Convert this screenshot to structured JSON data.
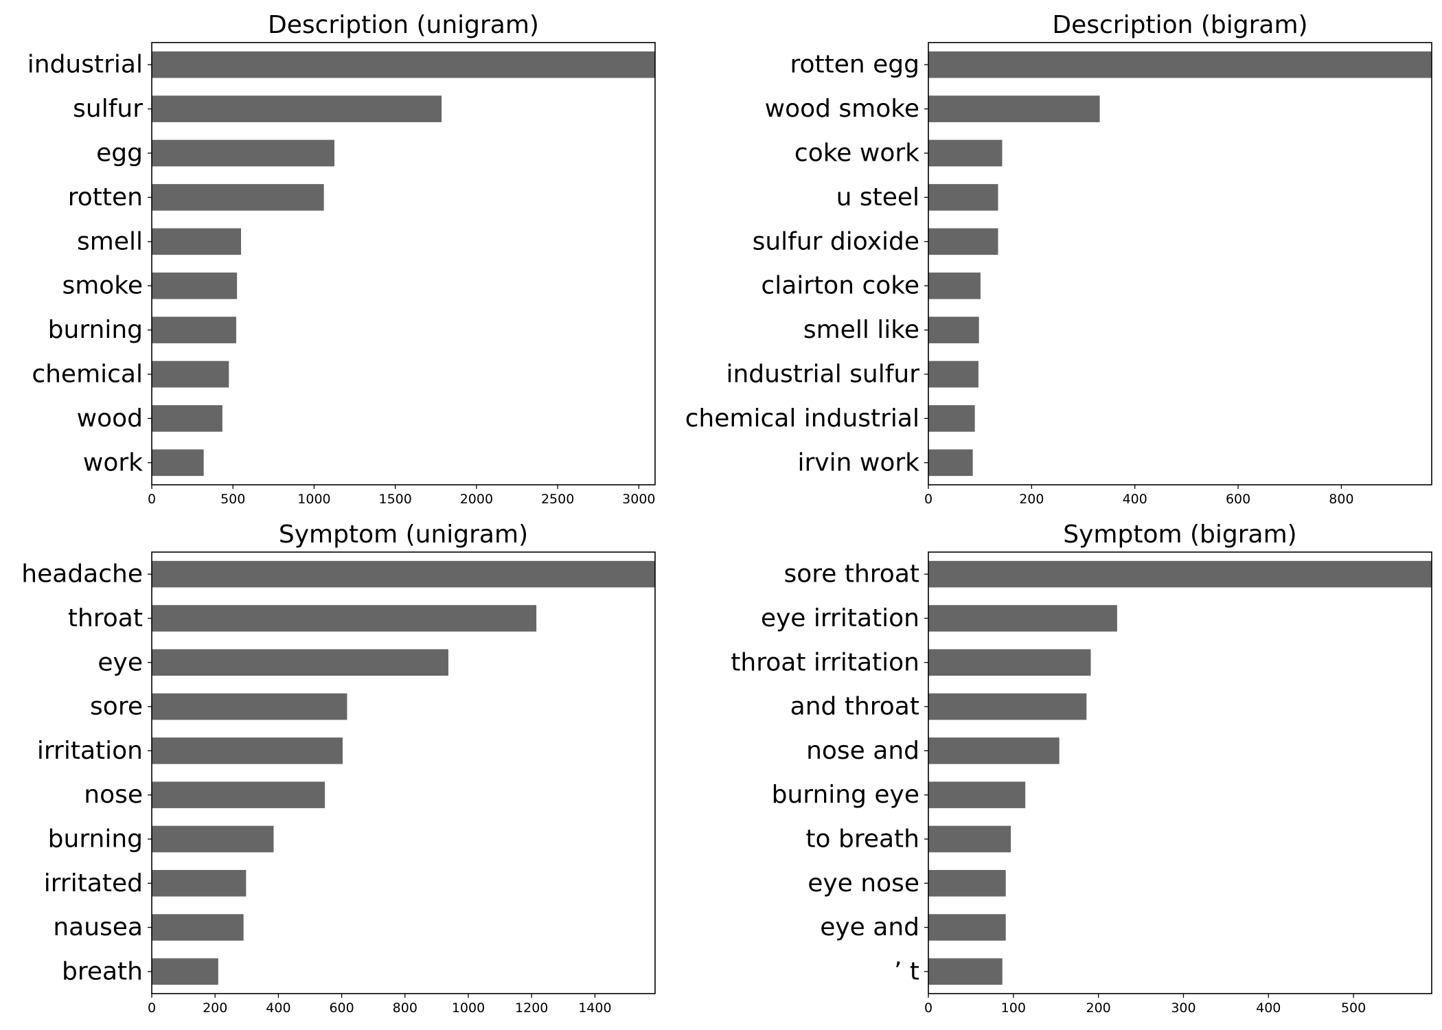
{
  "chart_data": [
    {
      "type": "bar",
      "orientation": "horizontal",
      "title": "Description (unigram)",
      "categories": [
        "industrial",
        "sulfur",
        "egg",
        "rotten",
        "smell",
        "smoke",
        "burning",
        "chemical",
        "wood",
        "work"
      ],
      "values": [
        3100,
        1785,
        1125,
        1060,
        550,
        525,
        520,
        475,
        435,
        320
      ],
      "xlim": [
        0,
        3100
      ],
      "xticks": [
        0,
        500,
        1000,
        1500,
        2000,
        2500,
        3000
      ],
      "xlabel": "",
      "ylabel": "",
      "bar_color": "#666666"
    },
    {
      "type": "bar",
      "orientation": "horizontal",
      "title": "Description (bigram)",
      "categories": [
        "rotten egg",
        "wood smoke",
        "coke work",
        "u steel",
        "sulfur dioxide",
        "clairton coke",
        "smell like",
        "industrial sulfur",
        "chemical industrial",
        "irvin work"
      ],
      "values": [
        975,
        332,
        143,
        135,
        135,
        101,
        98,
        97,
        90,
        86
      ],
      "xlim": [
        0,
        975
      ],
      "xticks": [
        0,
        200,
        400,
        600,
        800
      ],
      "xlabel": "",
      "ylabel": "",
      "bar_color": "#666666"
    },
    {
      "type": "bar",
      "orientation": "horizontal",
      "title": "Symptom (unigram)",
      "categories": [
        "headache",
        "throat",
        "eye",
        "sore",
        "irritation",
        "nose",
        "burning",
        "irritated",
        "nausea",
        "breath"
      ],
      "values": [
        1590,
        1215,
        937,
        617,
        603,
        547,
        385,
        298,
        290,
        210
      ],
      "xlim": [
        0,
        1590
      ],
      "xticks": [
        0,
        200,
        400,
        600,
        800,
        1000,
        1200,
        1400
      ],
      "xlabel": "",
      "ylabel": "",
      "bar_color": "#666666"
    },
    {
      "type": "bar",
      "orientation": "horizontal",
      "title": "Symptom (bigram)",
      "categories": [
        "sore throat",
        "eye irritation",
        "throat irritation",
        "and throat",
        "nose and",
        "burning eye",
        "to breath",
        "eye nose",
        "eye and",
        "’ t"
      ],
      "values": [
        592,
        222,
        191,
        186,
        154,
        114,
        97,
        91,
        91,
        87
      ],
      "xlim": [
        0,
        592
      ],
      "xticks": [
        0,
        100,
        200,
        300,
        400,
        500
      ],
      "xlabel": "",
      "ylabel": "",
      "bar_color": "#666666"
    }
  ]
}
